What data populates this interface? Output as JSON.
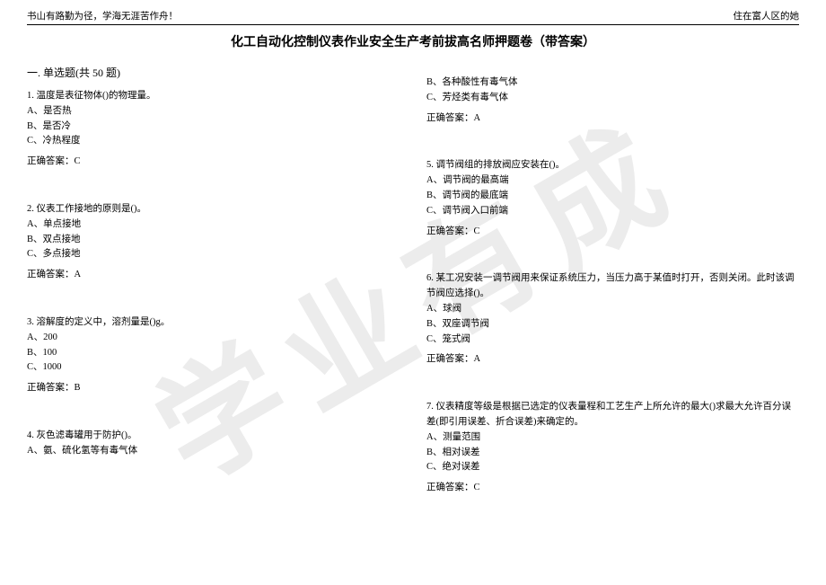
{
  "header": {
    "left": "书山有路勤为径，学海无涯苦作舟！",
    "right": "住在富人区的她"
  },
  "title": "化工自动化控制仪表作业安全生产考前拔高名师押题卷（带答案）",
  "watermark": "学业有成",
  "section": "一. 单选题(共 50 题)",
  "answer_label": "正确答案：",
  "left_questions": [
    {
      "stem": "1. 温度是表征物体()的物理量。",
      "opts": [
        "A、是否热",
        "B、是否冷",
        "C、冷热程度"
      ],
      "ans": "C"
    },
    {
      "stem": "2. 仪表工作接地的原则是()。",
      "opts": [
        "A、单点接地",
        "B、双点接地",
        "C、多点接地"
      ],
      "ans": "A"
    },
    {
      "stem": "3. 溶解度的定义中，溶剂量是()g。",
      "opts": [
        "A、200",
        "B、100",
        "C、1000"
      ],
      "ans": "B"
    },
    {
      "stem": "4. 灰色滤毒罐用于防护()。",
      "opts": [
        "A、氨、硫化氢等有毒气体"
      ],
      "ans": ""
    }
  ],
  "right_questions": [
    {
      "stem": "",
      "opts": [
        "B、各种酸性有毒气体",
        "C、芳烃类有毒气体"
      ],
      "ans": "A"
    },
    {
      "stem": "5. 调节阀组的排放阀应安装在()。",
      "opts": [
        "A、调节阀的最高端",
        "B、调节阀的最底端",
        "C、调节阀入口前端"
      ],
      "ans": "C"
    },
    {
      "stem": "6. 某工况安装一调节阀用来保证系统压力，当压力高于某值时打开，否则关闭。此时该调节阀应选择()。",
      "opts": [
        "A、球阀",
        "B、双座调节阀",
        "C、笼式阀"
      ],
      "ans": "A"
    },
    {
      "stem": "7. 仪表精度等级是根据已选定的仪表量程和工艺生产上所允许的最大()求最大允许百分误差(即引用误差、折合误差)来确定的。",
      "opts": [
        "A、测量范围",
        "B、相对误差",
        "C、绝对误差"
      ],
      "ans": "C"
    }
  ]
}
